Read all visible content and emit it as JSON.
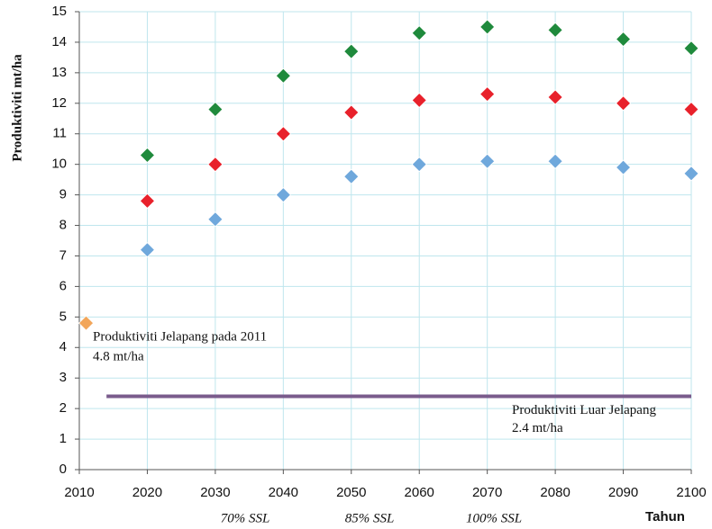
{
  "chart_data": {
    "type": "scatter",
    "xlabel": "Tahun",
    "ylabel": "Produktiviti mt/ha",
    "xlim": [
      2010,
      2100
    ],
    "xticks": [
      2010,
      2020,
      2030,
      2040,
      2050,
      2060,
      2070,
      2080,
      2090,
      2100
    ],
    "ylim": [
      0,
      15
    ],
    "yticks": [
      0,
      1,
      2,
      3,
      4,
      5,
      6,
      7,
      8,
      9,
      10,
      11,
      12,
      13,
      14,
      15
    ],
    "grid": true,
    "legend": "bottom",
    "x": [
      2020,
      2030,
      2040,
      2050,
      2060,
      2070,
      2080,
      2090,
      2100
    ],
    "series": [
      {
        "name": "70% SSL",
        "color": "#6fa8dc",
        "values": [
          7.2,
          8.2,
          9.0,
          9.6,
          10.0,
          10.1,
          10.1,
          9.9,
          9.7
        ]
      },
      {
        "name": "85% SSL",
        "color": "#e8212b",
        "values": [
          8.8,
          10.0,
          11.0,
          11.7,
          12.1,
          12.3,
          12.2,
          12.0,
          11.8
        ]
      },
      {
        "name": "100% SSL",
        "color": "#1f8a3c",
        "values": [
          10.3,
          11.8,
          12.9,
          13.7,
          14.3,
          14.5,
          14.4,
          14.1,
          13.8
        ]
      }
    ],
    "highlight": {
      "x": 2011,
      "y": 4.8,
      "color": "#f2a65a",
      "text": [
        "Produktiviti Jelapang pada 2011",
        "4.8 mt/ha"
      ]
    },
    "reference_line": {
      "y": 2.4,
      "x": [
        2014,
        2100
      ],
      "color": "#7a5c8c",
      "text": [
        "Produktiviti Luar Jelapang",
        "2.4 mt/ha"
      ]
    }
  }
}
